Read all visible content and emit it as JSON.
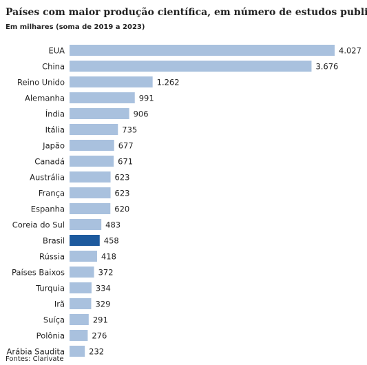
{
  "chart_data": {
    "type": "bar",
    "orientation": "horizontal",
    "title": "Países com maior produção científica, em número de estudos publicados",
    "subtitle": "Em milhares (soma de 2019 a 2023)",
    "source": "Fontes: Clarivate",
    "categories": [
      "EUA",
      "China",
      "Reino Unido",
      "Alemanha",
      "Índia",
      "Itália",
      "Japão",
      "Canadá",
      "Austrália",
      "França",
      "Espanha",
      "Coreia do Sul",
      "Brasil",
      "Rússia",
      "Países Baixos",
      "Turquia",
      "Irã",
      "Suíça",
      "Polônia",
      "Arábia Saudita"
    ],
    "values": [
      4027,
      3676,
      1262,
      991,
      906,
      735,
      677,
      671,
      623,
      623,
      620,
      483,
      458,
      418,
      372,
      334,
      329,
      291,
      276,
      232
    ],
    "value_labels": [
      "4.027",
      "3.676",
      "1.262",
      "991",
      "906",
      "735",
      "677",
      "671",
      "623",
      "623",
      "620",
      "483",
      "458",
      "418",
      "372",
      "334",
      "329",
      "291",
      "276",
      "232"
    ],
    "colors": [
      "#a9c1de",
      "#a9c1de",
      "#a9c1de",
      "#a9c1de",
      "#a9c1de",
      "#a9c1de",
      "#a9c1de",
      "#a9c1de",
      "#a9c1de",
      "#a9c1de",
      "#a9c1de",
      "#a9c1de",
      "#1d5a9e",
      "#a9c1de",
      "#a9c1de",
      "#a9c1de",
      "#a9c1de",
      "#a9c1de",
      "#a9c1de",
      "#a9c1de"
    ]
  }
}
